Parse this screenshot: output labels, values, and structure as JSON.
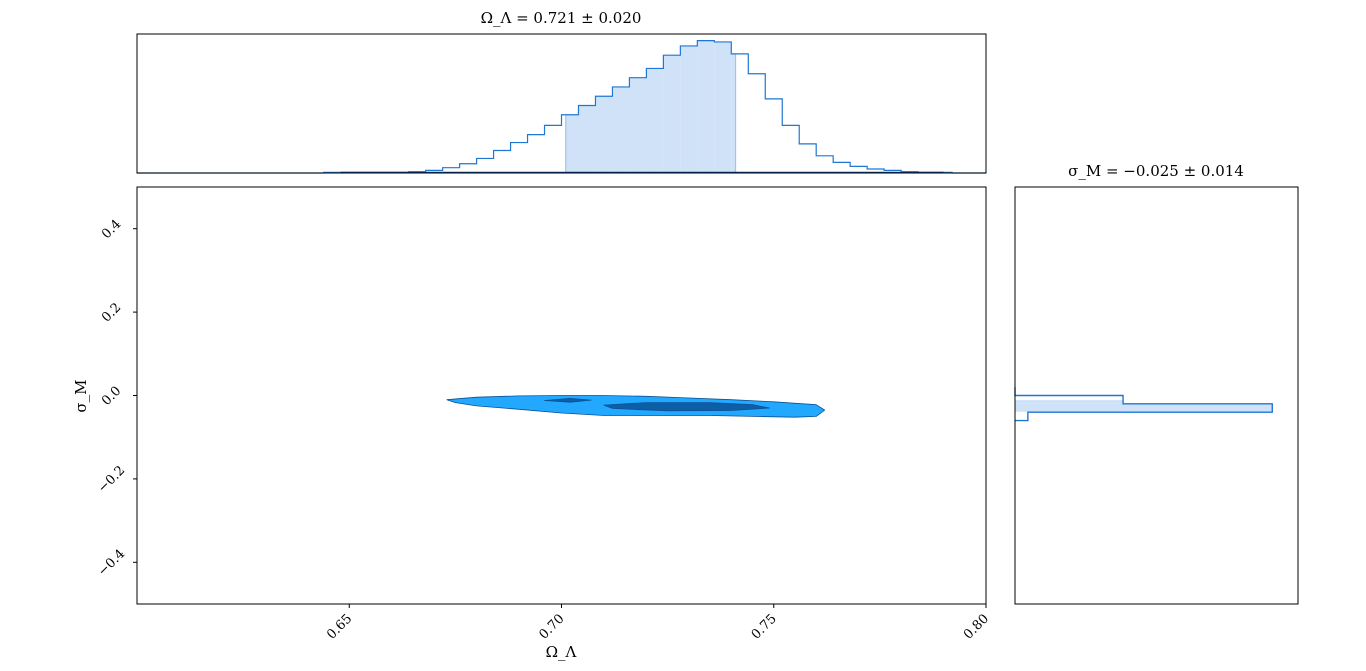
{
  "chart_data": [
    {
      "panel": "top-marginal",
      "type": "histogram",
      "title": "Ω_Λ = 0.721 ± 0.020",
      "xlim": [
        0.6,
        0.8
      ],
      "ylim": [
        0,
        1.05
      ],
      "shaded_interval": [
        0.701,
        0.741
      ],
      "bin_edges": [
        0.6,
        0.604,
        0.608,
        0.612,
        0.616,
        0.62,
        0.624,
        0.628,
        0.632,
        0.636,
        0.64,
        0.644,
        0.648,
        0.652,
        0.656,
        0.66,
        0.664,
        0.668,
        0.672,
        0.676,
        0.68,
        0.684,
        0.688,
        0.692,
        0.696,
        0.7,
        0.704,
        0.708,
        0.712,
        0.716,
        0.72,
        0.724,
        0.728,
        0.732,
        0.736,
        0.74,
        0.744,
        0.748,
        0.752,
        0.756,
        0.76,
        0.764,
        0.768,
        0.772,
        0.776,
        0.78,
        0.784,
        0.788,
        0.792,
        0.796,
        0.8
      ],
      "counts": [
        0,
        0,
        0,
        0,
        0,
        0,
        0,
        0,
        0,
        0,
        0,
        0.005,
        0.005,
        0.005,
        0.005,
        0.005,
        0.01,
        0.02,
        0.04,
        0.07,
        0.11,
        0.17,
        0.23,
        0.29,
        0.36,
        0.44,
        0.51,
        0.58,
        0.65,
        0.72,
        0.79,
        0.89,
        0.96,
        1.0,
        0.99,
        0.9,
        0.75,
        0.56,
        0.36,
        0.22,
        0.13,
        0.08,
        0.05,
        0.03,
        0.02,
        0.01,
        0.005,
        0.005,
        0,
        0
      ]
    },
    {
      "panel": "joint",
      "type": "contour",
      "xlabel": "Ω_Λ",
      "ylabel": "σ_M",
      "xlim": [
        0.6,
        0.8
      ],
      "ylim": [
        -0.5,
        0.5
      ],
      "xticks": [
        {
          "value": 0.65,
          "label": "0.65"
        },
        {
          "value": 0.7,
          "label": "0.70"
        },
        {
          "value": 0.75,
          "label": "0.75"
        },
        {
          "value": 0.8,
          "label": "0.80"
        }
      ],
      "yticks": [
        {
          "value": 0.4,
          "label": "0.4"
        },
        {
          "value": 0.2,
          "label": "0.2"
        },
        {
          "value": 0.0,
          "label": "0.0"
        },
        {
          "value": -0.2,
          "label": "−0.2"
        },
        {
          "value": -0.4,
          "label": "−0.4"
        }
      ],
      "contours": [
        {
          "level": "outer",
          "color": "#23a8ff",
          "points": [
            [
              0.673,
              -0.01
            ],
            [
              0.68,
              -0.004
            ],
            [
              0.69,
              -0.001
            ],
            [
              0.7,
              0.0
            ],
            [
              0.71,
              0.0
            ],
            [
              0.72,
              -0.002
            ],
            [
              0.728,
              -0.005
            ],
            [
              0.74,
              -0.01
            ],
            [
              0.75,
              -0.015
            ],
            [
              0.76,
              -0.022
            ],
            [
              0.762,
              -0.035
            ],
            [
              0.76,
              -0.05
            ],
            [
              0.755,
              -0.052
            ],
            [
              0.745,
              -0.05
            ],
            [
              0.735,
              -0.048
            ],
            [
              0.72,
              -0.048
            ],
            [
              0.71,
              -0.048
            ],
            [
              0.7,
              -0.042
            ],
            [
              0.69,
              -0.033
            ],
            [
              0.68,
              -0.025
            ],
            [
              0.675,
              -0.017
            ]
          ]
        },
        {
          "level": "inner",
          "color": "#0d5ea6",
          "points": [
            [
              0.696,
              -0.012
            ],
            [
              0.702,
              -0.007
            ],
            [
              0.707,
              -0.011
            ],
            [
              0.702,
              -0.016
            ]
          ]
        },
        {
          "level": "inner",
          "color": "#0d5ea6",
          "points": [
            [
              0.71,
              -0.023
            ],
            [
              0.72,
              -0.017
            ],
            [
              0.735,
              -0.017
            ],
            [
              0.745,
              -0.022
            ],
            [
              0.749,
              -0.03
            ],
            [
              0.74,
              -0.036
            ],
            [
              0.725,
              -0.037
            ],
            [
              0.712,
              -0.031
            ]
          ]
        }
      ]
    },
    {
      "panel": "right-marginal",
      "type": "histogram",
      "orientation": "horizontal",
      "title": "σ_M = −0.025 ± 0.014",
      "ylim": [
        -0.5,
        0.5
      ],
      "xlim": [
        0,
        1.1
      ],
      "shaded_interval": [
        -0.039,
        -0.011
      ],
      "bin_edges": [
        -0.06,
        -0.04,
        -0.02,
        0.0,
        0.02
      ],
      "counts": [
        0.05,
        1.0,
        0.42,
        0.0
      ]
    }
  ]
}
